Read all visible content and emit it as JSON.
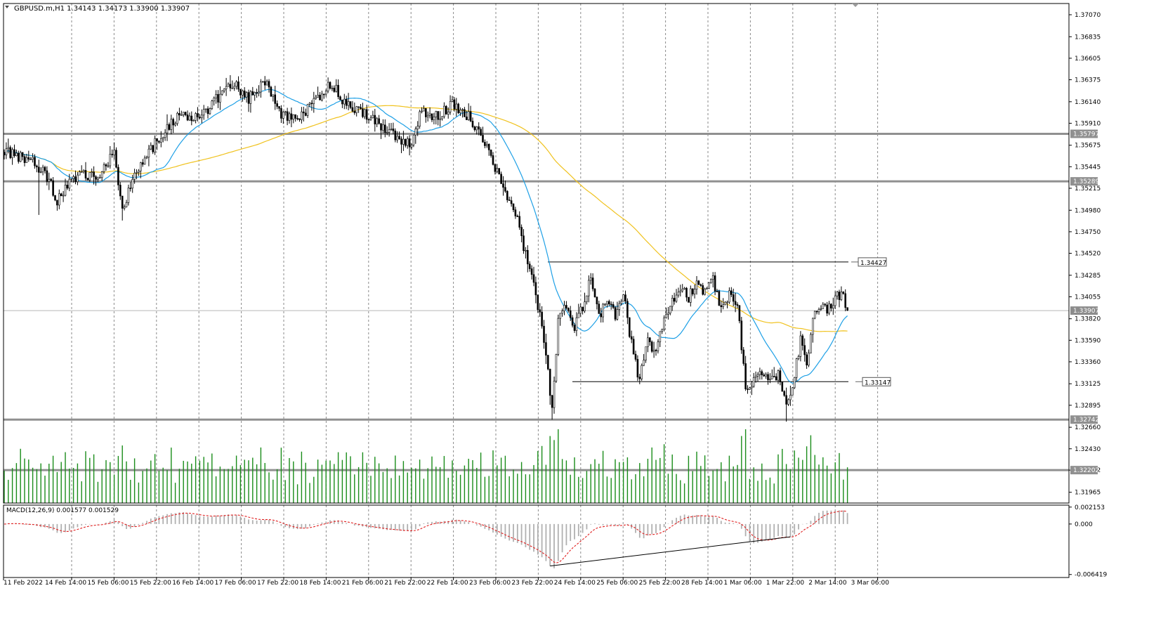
{
  "header": {
    "text": "GBPUSD.m,H1  1.34143 1.34173 1.33900 1.33907"
  },
  "macd_label": "MACD(12,26,9) 0.001577 0.001529",
  "colors": {
    "grid": "#8a8a8a",
    "candle": "#000000",
    "ma_fast": "#1ea0e6",
    "ma_slow": "#f0c21e",
    "hline": "#909090",
    "volume": "#1a8c1a",
    "macd_hist": "#b0b0b0",
    "macd_signal": "#e02020",
    "axis_text": "#000000"
  },
  "chart_data": {
    "type": "candlestick",
    "symbol": "GBPUSD.m",
    "timeframe": "H1",
    "price_axis_ticks": [
      "1.37070",
      "1.36835",
      "1.36605",
      "1.36375",
      "1.36140",
      "1.35910",
      "1.35675",
      "1.35445",
      "1.35215",
      "1.34980",
      "1.34750",
      "1.34520",
      "1.34285",
      "1.34055",
      "1.33820",
      "1.33590",
      "1.33360",
      "1.33125",
      "1.32895",
      "1.32660",
      "1.32430",
      "1.32202",
      "1.31965"
    ],
    "price_range": [
      1.3185,
      1.3719
    ],
    "time_labels": [
      "11 Feb 2022",
      "14 Feb 14:00",
      "15 Feb 06:00",
      "15 Feb 22:00",
      "16 Feb 14:00",
      "17 Feb 06:00",
      "17 Feb 22:00",
      "18 Feb 14:00",
      "21 Feb 06:00",
      "21 Feb 22:00",
      "22 Feb 14:00",
      "23 Feb 06:00",
      "23 Feb 22:00",
      "24 Feb 14:00",
      "25 Feb 06:00",
      "25 Feb 22:00",
      "28 Feb 14:00",
      "1 Mar 06:00",
      "1 Mar 22:00",
      "2 Mar 14:00",
      "3 Mar 06:00"
    ],
    "horizontal_levels": [
      {
        "label": "1.35797",
        "price": 1.35797
      },
      {
        "label": "1.35289",
        "price": 1.35289
      },
      {
        "label": "1.32742",
        "price": 1.32742
      },
      {
        "label": "1.32202",
        "price": 1.32202
      }
    ],
    "range_lines": [
      {
        "label": "1.34427",
        "price": 1.34427
      },
      {
        "label": "1.33147",
        "price": 1.33147
      }
    ],
    "current_price": {
      "label": "1.33907",
      "price": 1.33907
    },
    "path_anchors": [
      [
        0,
        1.3561
      ],
      [
        15,
        1.3549
      ],
      [
        22,
        1.353
      ],
      [
        26,
        1.3508
      ],
      [
        30,
        1.3522
      ],
      [
        38,
        1.354
      ],
      [
        46,
        1.353
      ],
      [
        54,
        1.3561
      ],
      [
        58,
        1.35
      ],
      [
        64,
        1.3535
      ],
      [
        72,
        1.3563
      ],
      [
        80,
        1.3587
      ],
      [
        88,
        1.3602
      ],
      [
        96,
        1.3595
      ],
      [
        104,
        1.3617
      ],
      [
        112,
        1.3634
      ],
      [
        120,
        1.3618
      ],
      [
        128,
        1.3635
      ],
      [
        136,
        1.3601
      ],
      [
        144,
        1.3598
      ],
      [
        152,
        1.3612
      ],
      [
        160,
        1.3634
      ],
      [
        168,
        1.3612
      ],
      [
        176,
        1.3603
      ],
      [
        184,
        1.359
      ],
      [
        192,
        1.3578
      ],
      [
        200,
        1.3568
      ],
      [
        204,
        1.3602
      ],
      [
        212,
        1.3598
      ],
      [
        220,
        1.3611
      ],
      [
        228,
        1.3598
      ],
      [
        234,
        1.358
      ],
      [
        240,
        1.3548
      ],
      [
        246,
        1.3518
      ],
      [
        252,
        1.349
      ],
      [
        256,
        1.345
      ],
      [
        261,
        1.341
      ],
      [
        265,
        1.336
      ],
      [
        269,
        1.3285
      ],
      [
        272,
        1.338
      ],
      [
        276,
        1.3395
      ],
      [
        280,
        1.3372
      ],
      [
        284,
        1.3395
      ],
      [
        288,
        1.3425
      ],
      [
        292,
        1.3385
      ],
      [
        296,
        1.3405
      ],
      [
        300,
        1.3385
      ],
      [
        304,
        1.341
      ],
      [
        308,
        1.3355
      ],
      [
        312,
        1.3315
      ],
      [
        316,
        1.336
      ],
      [
        320,
        1.3345
      ],
      [
        324,
        1.3385
      ],
      [
        328,
        1.34
      ],
      [
        332,
        1.3415
      ],
      [
        336,
        1.3405
      ],
      [
        340,
        1.342
      ],
      [
        344,
        1.341
      ],
      [
        348,
        1.3425
      ],
      [
        352,
        1.339
      ],
      [
        356,
        1.3408
      ],
      [
        360,
        1.3395
      ],
      [
        364,
        1.331
      ],
      [
        368,
        1.3315
      ],
      [
        372,
        1.3325
      ],
      [
        376,
        1.3315
      ],
      [
        380,
        1.3322
      ],
      [
        384,
        1.3285
      ],
      [
        388,
        1.332
      ],
      [
        391,
        1.336
      ],
      [
        394,
        1.333
      ],
      [
        397,
        1.338
      ],
      [
        400,
        1.3395
      ],
      [
        404,
        1.339
      ],
      [
        408,
        1.3405
      ],
      [
        412,
        1.3408
      ],
      [
        414,
        1.3391
      ]
    ],
    "candle_count": 415,
    "volume_axis_label": "1.32202",
    "macd_axis_ticks": [
      "0.002153",
      "0.000",
      "-0.006419"
    ],
    "macd_range": [
      -0.0068,
      0.0024
    ],
    "macd_divergence_line": {
      "from_index": 268,
      "to_index": 386
    }
  }
}
